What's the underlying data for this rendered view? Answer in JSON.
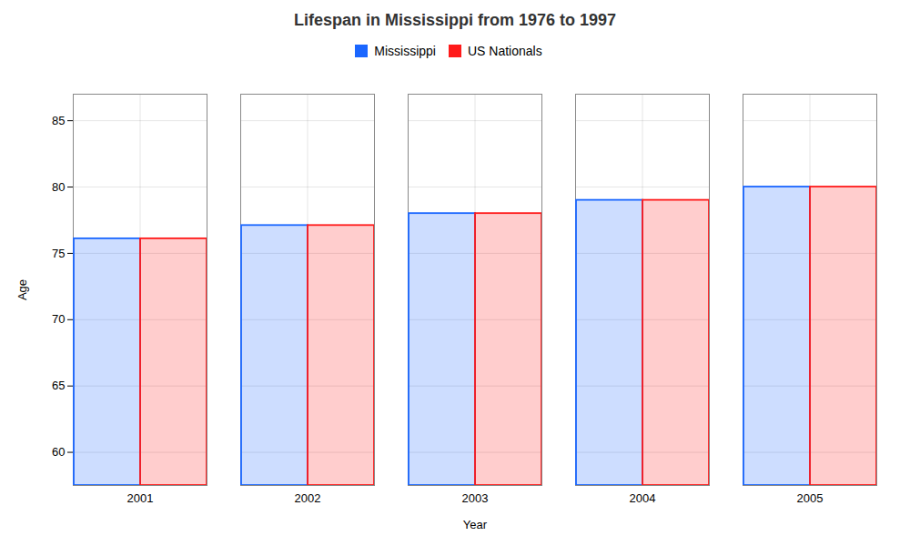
{
  "chart_data": {
    "type": "bar",
    "title": "Lifespan in Mississippi from 1976 to 1997",
    "xlabel": "Year",
    "ylabel": "Age",
    "categories": [
      "2001",
      "2002",
      "2003",
      "2004",
      "2005"
    ],
    "series": [
      {
        "name": "Mississippi",
        "color": "#1a66ff",
        "values": [
          76.1,
          77.1,
          78.0,
          79.0,
          80.0
        ]
      },
      {
        "name": "US Nationals",
        "color": "#ff1a1a",
        "values": [
          76.1,
          77.1,
          78.0,
          79.0,
          80.0
        ]
      }
    ],
    "ylim": [
      57.5,
      87
    ],
    "yticks": [
      60,
      65,
      70,
      75,
      80,
      85
    ],
    "grid": true,
    "legend": "top"
  }
}
